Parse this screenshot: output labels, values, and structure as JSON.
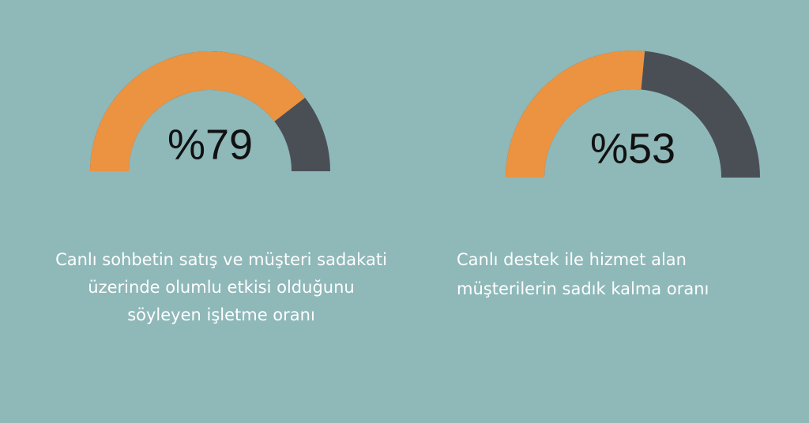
{
  "chart_data": [
    {
      "type": "gauge",
      "values": [
        79
      ],
      "value_labels": [
        "%79"
      ],
      "ylim": [
        0,
        100
      ],
      "color": "#eb9340",
      "track_color": "#4a4f56",
      "caption": [
        "Canlı sohbetin satış ve müşteri sadakati",
        "üzerinde olumlu etkisi olduğunu",
        "söyleyen işletme oranı"
      ]
    },
    {
      "type": "gauge",
      "values": [
        53
      ],
      "value_labels": [
        "%53"
      ],
      "ylim": [
        0,
        100
      ],
      "color": "#eb9340",
      "track_color": "#4a4f56",
      "caption": [
        "Canlı destek ile hizmet alan",
        "müşterilerin sadık kalma oranı"
      ]
    }
  ]
}
